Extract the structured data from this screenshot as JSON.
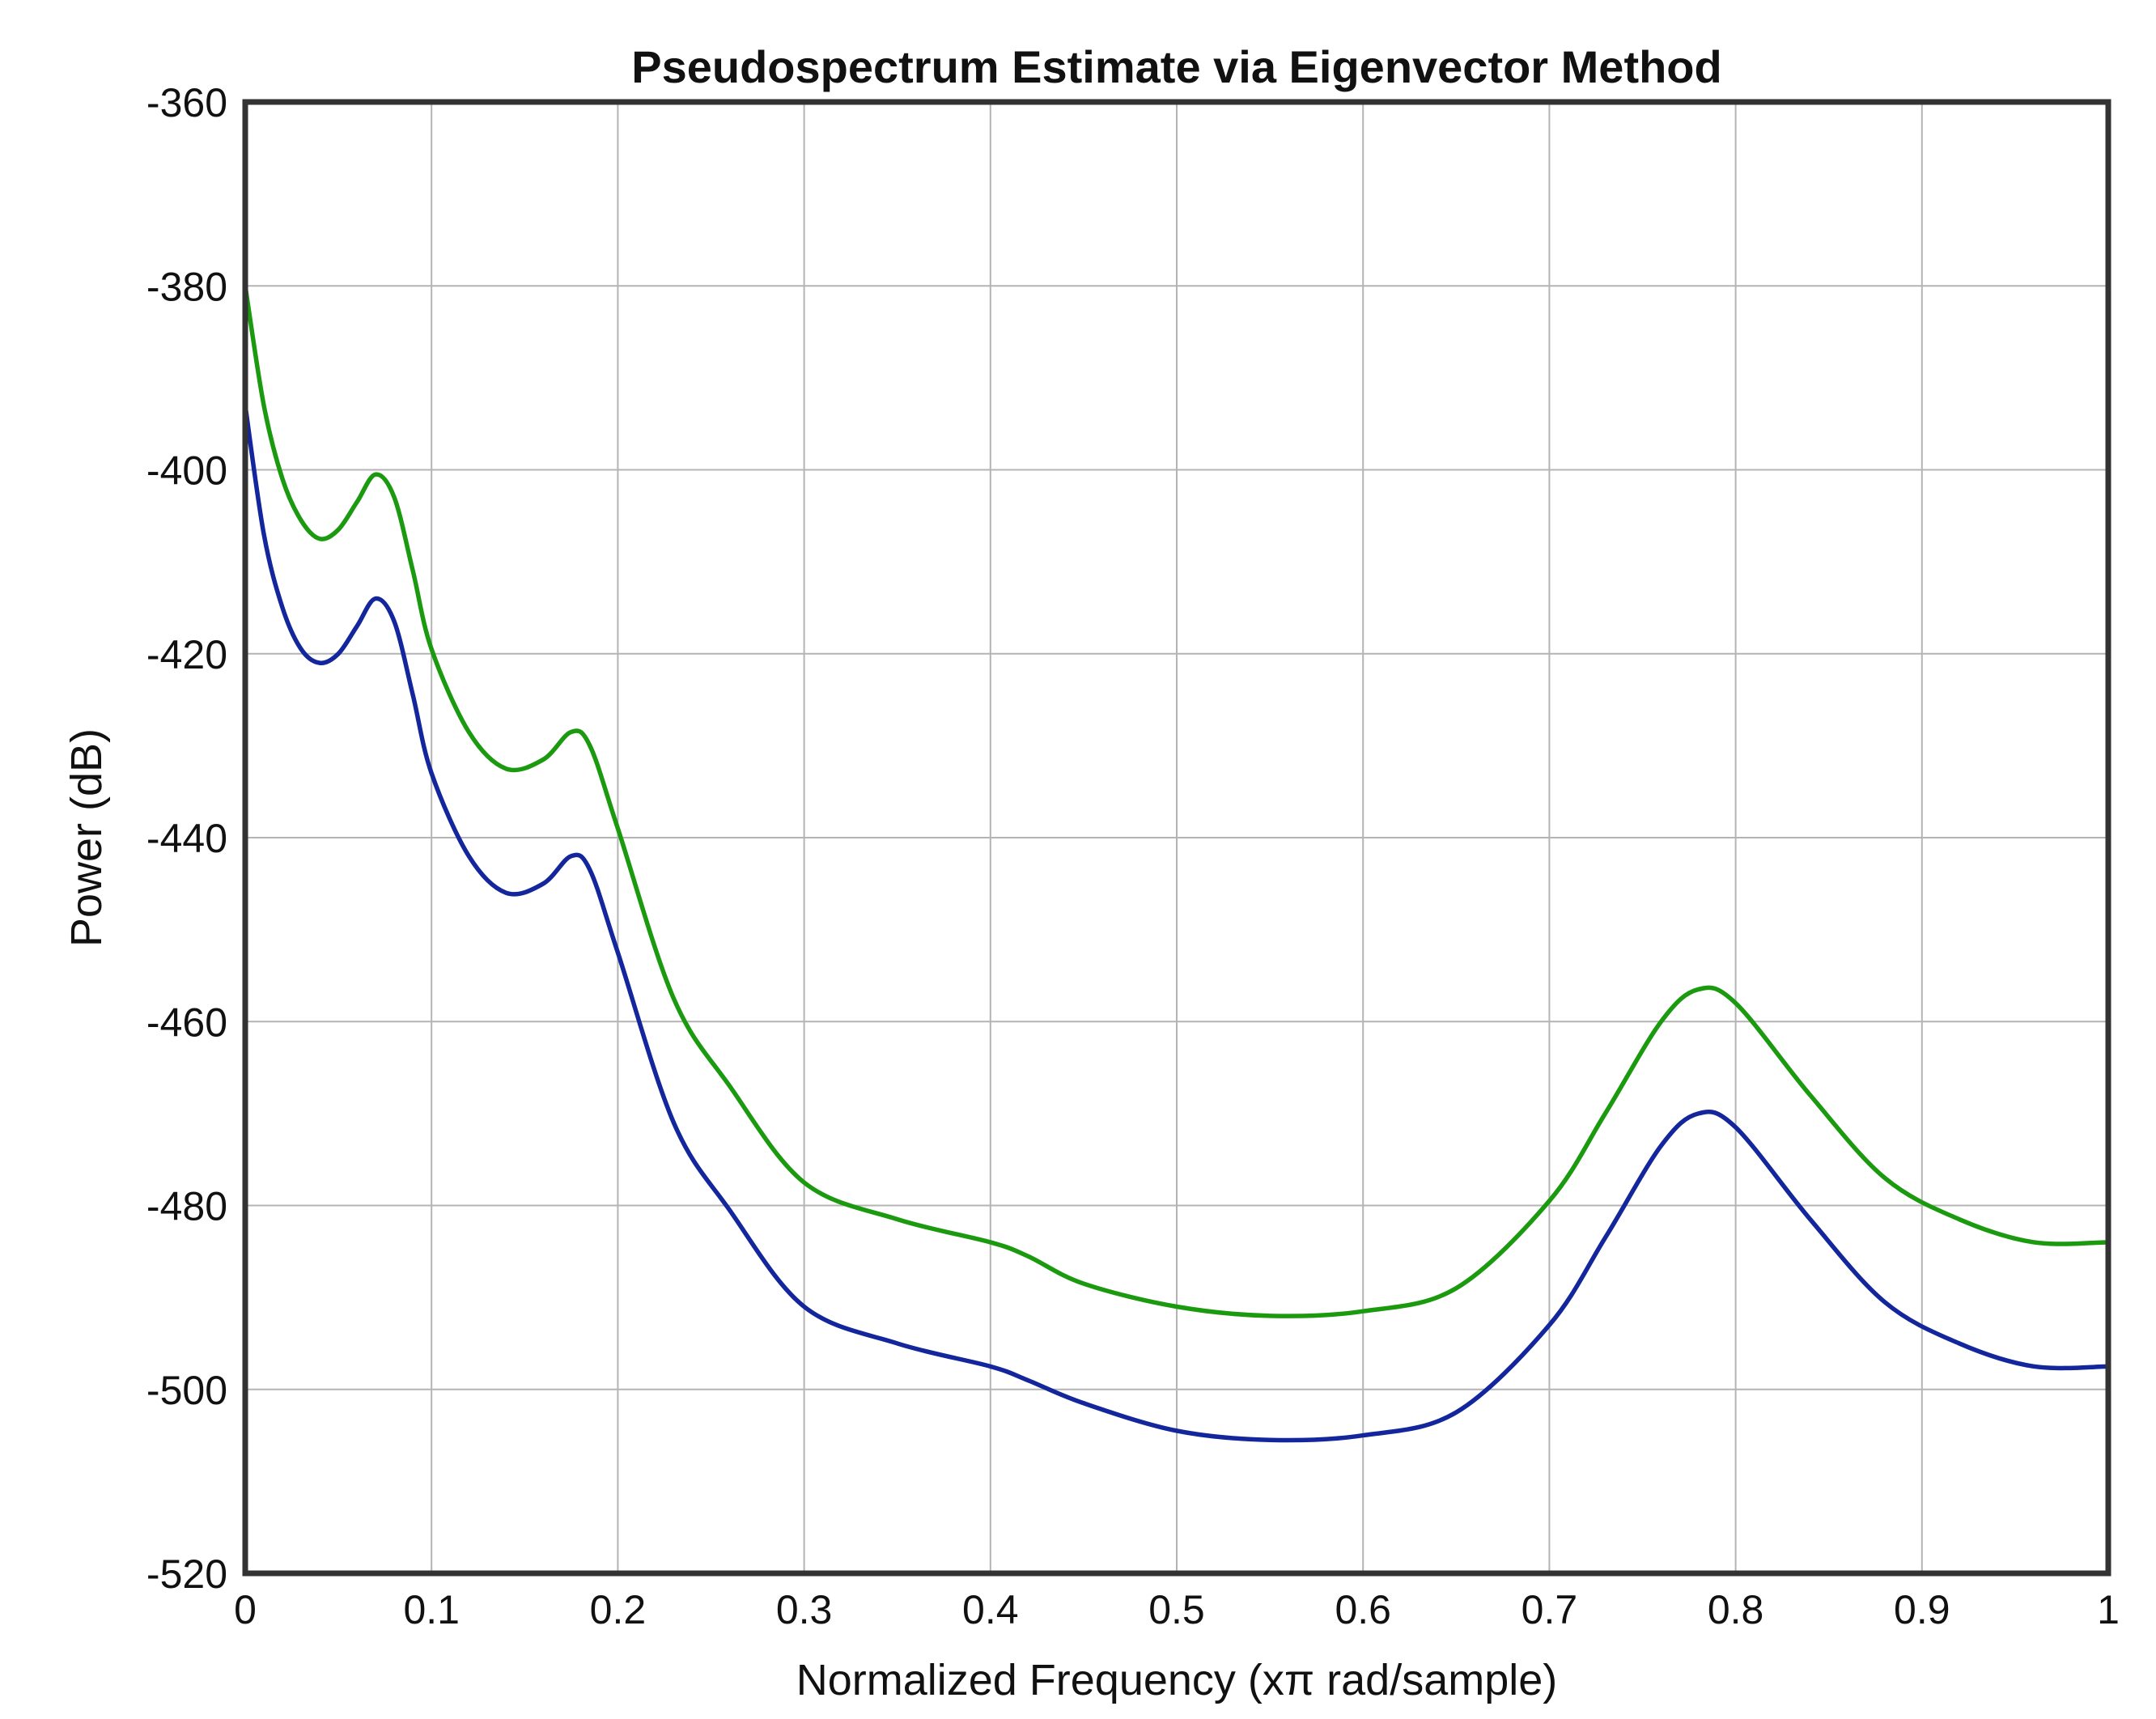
{
  "chart_data": {
    "type": "line",
    "title": "Pseudospectrum Estimate via Eigenvector Method",
    "xlabel": "Normalized Frequency (xπ rad/sample)",
    "ylabel": "Power (dB)",
    "xlim": [
      0,
      1
    ],
    "ylim": [
      -520,
      -360
    ],
    "xticks": [
      0,
      0.1,
      0.2,
      0.3,
      0.4,
      0.5,
      0.6,
      0.7,
      0.8,
      0.9,
      1
    ],
    "xtick_labels": [
      "0",
      "0.1",
      "0.2",
      "0.3",
      "0.4",
      "0.5",
      "0.6",
      "0.7",
      "0.8",
      "0.9",
      "1"
    ],
    "yticks": [
      -520,
      -500,
      -480,
      -460,
      -440,
      -420,
      -400,
      -380,
      -360
    ],
    "ytick_labels": [
      "-520",
      "-500",
      "-480",
      "-460",
      "-440",
      "-420",
      "-400",
      "-380",
      "-360"
    ],
    "grid": true,
    "series": [
      {
        "name": "green",
        "color": "#1b9a10",
        "x": [
          0,
          0.01,
          0.02,
          0.03,
          0.04,
          0.05,
          0.06,
          0.07,
          0.08,
          0.09,
          0.1,
          0.12,
          0.14,
          0.16,
          0.175,
          0.185,
          0.2,
          0.23,
          0.26,
          0.3,
          0.35,
          0.4,
          0.42,
          0.45,
          0.5,
          0.55,
          0.6,
          0.65,
          0.7,
          0.73,
          0.76,
          0.78,
          0.8,
          0.84,
          0.88,
          0.92,
          0.96,
          1.0
        ],
        "y": [
          -380,
          -393,
          -401,
          -405.5,
          -407.5,
          -406.5,
          -403.5,
          -400.5,
          -403,
          -411,
          -419.5,
          -428.5,
          -432.5,
          -431.5,
          -428.5,
          -430,
          -439,
          -457.5,
          -467,
          -477.5,
          -481.5,
          -484,
          -485.5,
          -488.5,
          -491,
          -492,
          -491.5,
          -489,
          -479.5,
          -470,
          -460,
          -456.5,
          -458,
          -468,
          -477,
          -481.5,
          -484,
          -484
        ]
      },
      {
        "name": "blue",
        "color": "#13269c",
        "x": [
          0,
          0.01,
          0.02,
          0.03,
          0.04,
          0.05,
          0.06,
          0.07,
          0.08,
          0.09,
          0.1,
          0.12,
          0.14,
          0.16,
          0.175,
          0.185,
          0.2,
          0.23,
          0.26,
          0.3,
          0.35,
          0.4,
          0.42,
          0.45,
          0.5,
          0.55,
          0.6,
          0.65,
          0.7,
          0.73,
          0.76,
          0.78,
          0.8,
          0.84,
          0.88,
          0.92,
          0.96,
          1.0
        ],
        "y": [
          -393,
          -407,
          -415,
          -419.5,
          -421,
          -420,
          -417,
          -414,
          -416.5,
          -424.5,
          -433,
          -442,
          -446,
          -445,
          -442,
          -443.5,
          -452.5,
          -471,
          -480.5,
          -491,
          -495,
          -497.5,
          -499,
          -501.5,
          -504.5,
          -505.5,
          -505,
          -502.5,
          -493,
          -483.5,
          -473.5,
          -470,
          -471.5,
          -481.5,
          -490.5,
          -495,
          -497.5,
          -497.5
        ]
      }
    ]
  }
}
